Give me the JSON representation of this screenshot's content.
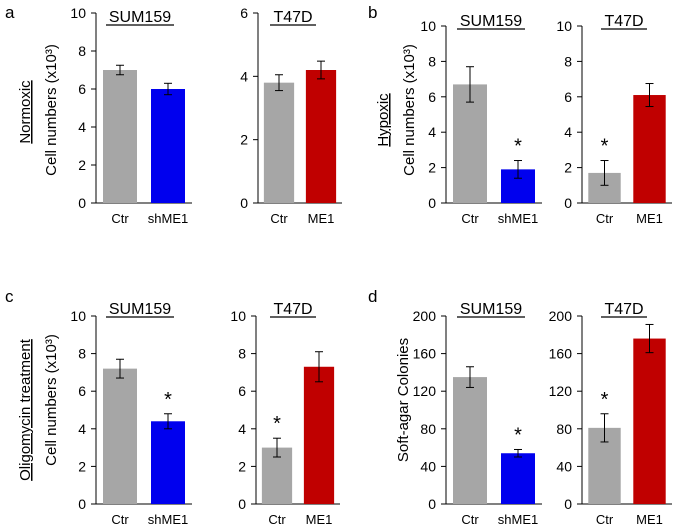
{
  "colors": {
    "ctr": "#a6a6a6",
    "blue": "#0000ee",
    "red": "#c00000",
    "axis": "#000000"
  },
  "panels": [
    {
      "letter": "a",
      "condition": "Normoxic",
      "ylabel": "Cell numbers (x10³)"
    },
    {
      "letter": "b",
      "condition": "Hypoxic",
      "ylabel": "Cell numbers (x10³)"
    },
    {
      "letter": "c",
      "condition": "Oligomycin treatment",
      "ylabel": "Cell numbers (x10³)"
    },
    {
      "letter": "d",
      "condition": "",
      "ylabel": "Soft-agar Colonies"
    }
  ],
  "chart_data": [
    {
      "type": "bar",
      "panel": "a",
      "title": "SUM159",
      "categories": [
        "Ctr",
        "shME1"
      ],
      "values": [
        7.0,
        6.0
      ],
      "errors": [
        0.25,
        0.3
      ],
      "significant": [
        false,
        false
      ],
      "ylim": [
        0,
        10
      ],
      "yticks": [
        0,
        2,
        4,
        6,
        8,
        10
      ],
      "colors": [
        "#a6a6a6",
        "#0000ee"
      ]
    },
    {
      "type": "bar",
      "panel": "a",
      "title": "T47D",
      "categories": [
        "Ctr",
        "ME1"
      ],
      "values": [
        3.8,
        4.2
      ],
      "errors": [
        0.25,
        0.28
      ],
      "significant": [
        false,
        false
      ],
      "ylim": [
        0,
        6
      ],
      "yticks": [
        0,
        2,
        4,
        6
      ],
      "colors": [
        "#a6a6a6",
        "#c00000"
      ]
    },
    {
      "type": "bar",
      "panel": "b",
      "title": "SUM159",
      "categories": [
        "Ctr",
        "shME1"
      ],
      "values": [
        6.7,
        1.9
      ],
      "errors": [
        1.0,
        0.5
      ],
      "significant": [
        false,
        true
      ],
      "ylim": [
        0,
        10
      ],
      "yticks": [
        0,
        2,
        4,
        6,
        8,
        10
      ],
      "colors": [
        "#a6a6a6",
        "#0000ee"
      ]
    },
    {
      "type": "bar",
      "panel": "b",
      "title": "T47D",
      "categories": [
        "Ctr",
        "ME1"
      ],
      "values": [
        1.7,
        6.1
      ],
      "errors": [
        0.7,
        0.65
      ],
      "significant": [
        true,
        false
      ],
      "ylim": [
        0,
        10
      ],
      "yticks": [
        0,
        2,
        4,
        6,
        8,
        10
      ],
      "colors": [
        "#a6a6a6",
        "#c00000"
      ]
    },
    {
      "type": "bar",
      "panel": "c",
      "title": "SUM159",
      "categories": [
        "Ctr",
        "shME1"
      ],
      "values": [
        7.2,
        4.4
      ],
      "errors": [
        0.5,
        0.4
      ],
      "significant": [
        false,
        true
      ],
      "ylim": [
        0,
        10
      ],
      "yticks": [
        0,
        2,
        4,
        6,
        8,
        10
      ],
      "colors": [
        "#a6a6a6",
        "#0000ee"
      ]
    },
    {
      "type": "bar",
      "panel": "c",
      "title": "T47D",
      "categories": [
        "Ctr",
        "ME1"
      ],
      "values": [
        3.0,
        7.3
      ],
      "errors": [
        0.5,
        0.8
      ],
      "significant": [
        true,
        false
      ],
      "ylim": [
        0,
        10
      ],
      "yticks": [
        0,
        2,
        4,
        6,
        8,
        10
      ],
      "colors": [
        "#a6a6a6",
        "#c00000"
      ]
    },
    {
      "type": "bar",
      "panel": "d",
      "title": "SUM159",
      "categories": [
        "Ctr",
        "shME1"
      ],
      "values": [
        135,
        54
      ],
      "errors": [
        11,
        4
      ],
      "significant": [
        false,
        true
      ],
      "ylim": [
        0,
        200
      ],
      "yticks": [
        0,
        40,
        80,
        120,
        160,
        200
      ],
      "colors": [
        "#a6a6a6",
        "#0000ee"
      ]
    },
    {
      "type": "bar",
      "panel": "d",
      "title": "T47D",
      "categories": [
        "Ctr",
        "ME1"
      ],
      "values": [
        81,
        176
      ],
      "errors": [
        15,
        15
      ],
      "significant": [
        true,
        false
      ],
      "ylim": [
        0,
        200
      ],
      "yticks": [
        0,
        40,
        80,
        120,
        160,
        200
      ],
      "colors": [
        "#a6a6a6",
        "#c00000"
      ]
    }
  ],
  "significance_mark": "*"
}
